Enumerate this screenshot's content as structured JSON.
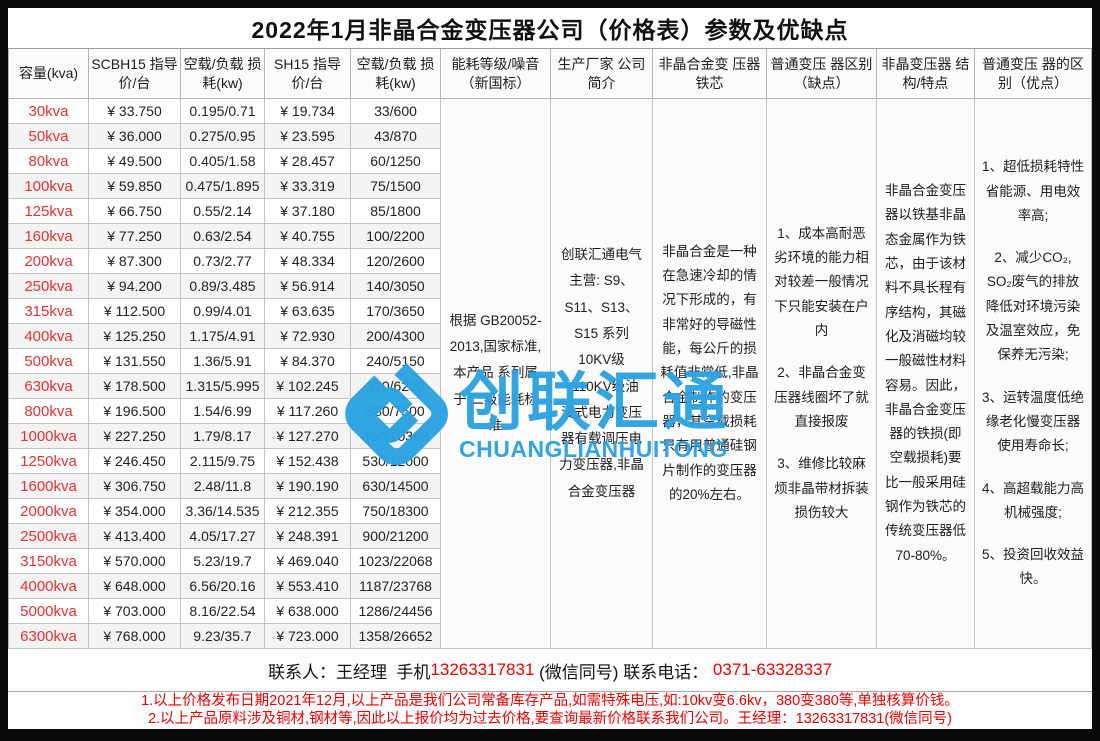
{
  "title": "2022年1月非晶合金变压器公司（价格表）参数及优缺点",
  "table": {
    "headers": [
      "容量(kva)",
      "SCBH15 指导价/台",
      "空载/负载 损耗(kw)",
      "SH15 指导价/台",
      "空载/负载 损耗(kw)",
      "能耗等级/噪音 （新国标）",
      "生产厂家 公司简介",
      "非晶合金变 压器铁芯",
      "普通变压 器区别（缺点）",
      "非晶变压器 结构/特点",
      "普通变压 器的区别（优点）"
    ],
    "rows": [
      {
        "capacity": "30kva",
        "scbh15_price": "¥ 33.750",
        "scbh15_loss": "0.195/0.71",
        "sh15_price": "¥ 19.734",
        "sh15_loss": "33/600"
      },
      {
        "capacity": "50kva",
        "scbh15_price": "¥ 36.000",
        "scbh15_loss": "0.275/0.95",
        "sh15_price": "¥ 23.595",
        "sh15_loss": "43/870"
      },
      {
        "capacity": "80kva",
        "scbh15_price": "¥ 49.500",
        "scbh15_loss": "0.405/1.58",
        "sh15_price": "¥ 28.457",
        "sh15_loss": "60/1250"
      },
      {
        "capacity": "100kva",
        "scbh15_price": "¥ 59.850",
        "scbh15_loss": "0.475/1.895",
        "sh15_price": "¥ 33.319",
        "sh15_loss": "75/1500"
      },
      {
        "capacity": "125kva",
        "scbh15_price": "¥ 66.750",
        "scbh15_loss": "0.55/2.14",
        "sh15_price": "¥ 37.180",
        "sh15_loss": "85/1800"
      },
      {
        "capacity": "160kva",
        "scbh15_price": "¥ 77.250",
        "scbh15_loss": "0.63/2.54",
        "sh15_price": "¥ 40.755",
        "sh15_loss": "100/2200"
      },
      {
        "capacity": "200kva",
        "scbh15_price": "¥ 87.300",
        "scbh15_loss": "0.73/2.77",
        "sh15_price": "¥ 48.334",
        "sh15_loss": "120/2600"
      },
      {
        "capacity": "250kva",
        "scbh15_price": "¥ 94.200",
        "scbh15_loss": "0.89/3.485",
        "sh15_price": "¥ 56.914",
        "sh15_loss": "140/3050"
      },
      {
        "capacity": "315kva",
        "scbh15_price": "¥ 112.500",
        "scbh15_loss": "0.99/4.01",
        "sh15_price": "¥ 63.635",
        "sh15_loss": "170/3650"
      },
      {
        "capacity": "400kva",
        "scbh15_price": "¥ 125.250",
        "scbh15_loss": "1.175/4.91",
        "sh15_price": "¥ 72.930",
        "sh15_loss": "200/4300"
      },
      {
        "capacity": "500kva",
        "scbh15_price": "¥ 131.550",
        "scbh15_loss": "1.36/5.91",
        "sh15_price": "¥ 84.370",
        "sh15_loss": "240/5150"
      },
      {
        "capacity": "630kva",
        "scbh15_price": "¥ 178.500",
        "scbh15_loss": "1.315/5.995",
        "sh15_price": "¥ 102.245",
        "sh15_loss": "320/6200"
      },
      {
        "capacity": "800kva",
        "scbh15_price": "¥ 196.500",
        "scbh15_loss": "1.54/6.99",
        "sh15_price": "¥ 117.260",
        "sh15_loss": "380/7500"
      },
      {
        "capacity": "1000kva",
        "scbh15_price": "¥ 227.250",
        "scbh15_loss": "1.79/8.17",
        "sh15_price": "¥ 127.270",
        "sh15_loss": "450/10300"
      },
      {
        "capacity": "1250kva",
        "scbh15_price": "¥ 246.450",
        "scbh15_loss": "2.115/9.75",
        "sh15_price": "¥ 152.438",
        "sh15_loss": "530/12000"
      },
      {
        "capacity": "1600kva",
        "scbh15_price": "¥ 306.750",
        "scbh15_loss": "2.48/11.8",
        "sh15_price": "¥ 190.190",
        "sh15_loss": "630/14500"
      },
      {
        "capacity": "2000kva",
        "scbh15_price": "¥ 354.000",
        "scbh15_loss": "3.36/14.535",
        "sh15_price": "¥ 212.355",
        "sh15_loss": "750/18300"
      },
      {
        "capacity": "2500kva",
        "scbh15_price": "¥ 413.400",
        "scbh15_loss": "4.05/17.27",
        "sh15_price": "¥ 248.391",
        "sh15_loss": "900/21200"
      },
      {
        "capacity": "3150kva",
        "scbh15_price": "¥ 570.000",
        "scbh15_loss": "5.23/19.7",
        "sh15_price": "¥ 469.040",
        "sh15_loss": "1023/22068"
      },
      {
        "capacity": "4000kva",
        "scbh15_price": "¥ 648.000",
        "scbh15_loss": "6.56/20.16",
        "sh15_price": "¥ 553.410",
        "sh15_loss": "1187/23768"
      },
      {
        "capacity": "5000kva",
        "scbh15_price": "¥ 703.000",
        "scbh15_loss": "8.16/22.54",
        "sh15_price": "¥ 638.000",
        "sh15_loss": "1286/24456"
      },
      {
        "capacity": "6300kva",
        "scbh15_price": "¥ 768.000",
        "scbh15_loss": "9.23/35.7",
        "sh15_price": "¥ 723.000",
        "sh15_loss": "1358/26652"
      }
    ],
    "merged": {
      "energy_standard": "根据 GB20052-2013,国家标准,本产品 系列属于 二级能耗标准",
      "company_intro": "创联汇通电气主营: S9、S11、S13、S15 系列10KV级~110KV级油浸式电力变压器有载调压电力变压器,非晶合金变压器",
      "core_info": "非晶合金是一种在急速冷却的情况下形成的，有非常好的导磁性能，每公斤的损耗值非常低,非晶合金制作的变压器，其空载损耗只有用普通硅钢片制作的变压器的20%左右。",
      "disadvantages": [
        "1、成本高耐恶劣环境的能力相对较差一般情况下只能安装在户内",
        "2、非晶合金变压器线圈坏了就直接报废",
        "3、维修比较麻烦非晶带材拆装损伤较大"
      ],
      "structure_features": "非晶合金变压器以铁基非晶态金属作为铁芯，由于该材料不具长程有序结构，其磁化及消磁均较一般磁性材料容易。因此，非晶合金变压器的铁损(即空载损耗)要比一般采用硅钢作为铁芯的传统变压器低70-80%。",
      "advantages": [
        "1、超低损耗特性省能源、用电效率高;",
        "2、减少CO₂, SO₂废气的排放降低对环境污染及温室效应，免保养无污染;",
        "3、运转温度低绝缘老化慢变压器使用寿命长;",
        "4、高超载能力高机械强度;",
        "5、投资回收效益快。"
      ]
    }
  },
  "watermark": {
    "logo_text": "创联汇通",
    "logo_subtext": "CHUANGLIANHUITONG",
    "color": "#2aa2e2"
  },
  "footer": {
    "contact_prefix": "联系人：王经理  手机",
    "contact_phone": "13263317831",
    "contact_mid": " (微信同号) 联系电话： ",
    "contact_tel": "0371-63328337",
    "note1": "1.以上价格发布日期2021年12月,以上产品是我们公司常备库存产品,如需特殊电压,如:10kv变6.6kv，380变380等,单独核算价钱。",
    "note2": "2.以上产品原料涉及铜材,钢材等,因此以上报价均为过去价格,要查询最新价格联系我们公司。王经理：13263317831(微信同号)"
  },
  "colors": {
    "capacity_red": "#e8312f",
    "footer_red": "#f20000",
    "watermark_blue": "#2aa2e2",
    "grid_line": "#c3c3c3"
  }
}
